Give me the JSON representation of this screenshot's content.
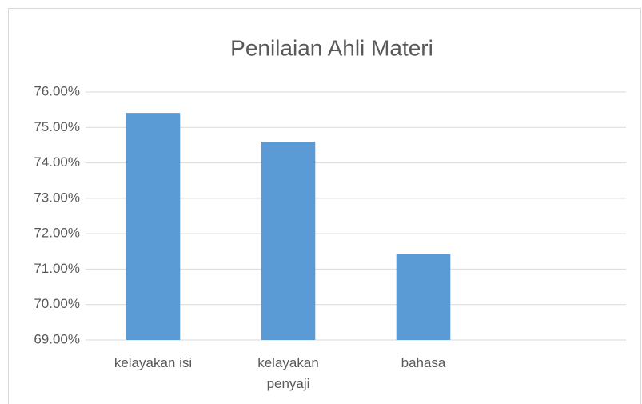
{
  "chart_data": {
    "type": "bar",
    "title": "Penilaian Ahli Materi",
    "categories": [
      "kelayakan isi",
      "kelayakan penyaji",
      "bahasa",
      null
    ],
    "values": [
      75.41,
      74.6,
      71.42,
      null
    ],
    "color": "#5b9bd5",
    "ylim": [
      69,
      76
    ],
    "yticks": [
      {
        "value": 69,
        "label": "69.00%"
      },
      {
        "value": 70,
        "label": "70.00%"
      },
      {
        "value": 71,
        "label": "71.00%"
      },
      {
        "value": 72,
        "label": "72.00%"
      },
      {
        "value": 73,
        "label": "73.00%"
      },
      {
        "value": 74,
        "label": "74.00%"
      },
      {
        "value": 75,
        "label": "75.00%"
      },
      {
        "value": 76,
        "label": "76.00%"
      }
    ],
    "grid": true
  }
}
